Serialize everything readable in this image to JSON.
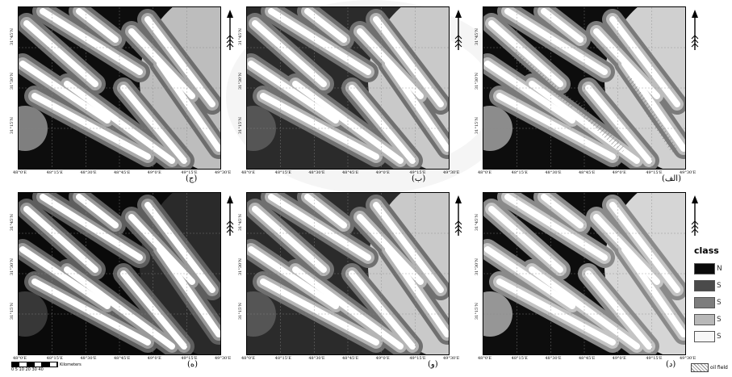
{
  "panels": [
    {
      "id": "alef",
      "label": "(الف)",
      "style": "oil"
    },
    {
      "id": "be",
      "label": "(ب)",
      "style": "mid"
    },
    {
      "id": "jim",
      "label": "(ج)",
      "style": "gray"
    },
    {
      "id": "dal",
      "label": "(د)",
      "style": "light"
    },
    {
      "id": "vav",
      "label": "(و)",
      "style": "mid"
    },
    {
      "id": "he",
      "label": "(ه)",
      "style": "dark"
    }
  ],
  "axis": {
    "lon_ticks": [
      "48°0'E",
      "48°15'E",
      "48°30'E",
      "48°45'E",
      "49°0'E",
      "49°15'E",
      "49°30'E"
    ],
    "lat_ticks": [
      "31°45'N",
      "31°30'N",
      "31°15'N"
    ]
  },
  "legend": {
    "title": "class",
    "items": [
      {
        "label": "N",
        "color": "#0a0a0a"
      },
      {
        "label": "S",
        "color": "#4a4a4a"
      },
      {
        "label": "S",
        "color": "#7d7d7d"
      },
      {
        "label": "S",
        "color": "#b8b8b8"
      },
      {
        "label": "S",
        "color": "#f7f7f7"
      }
    ]
  },
  "oil_field_label": "oil field",
  "scalebar": {
    "unit": "Kilometers",
    "ticks": "0 5 10   20   30   40"
  },
  "palettes": {
    "dark": {
      "bg": "#0a0a0a",
      "rightzone": "#2a2a2a",
      "ring": "#5e5e5e",
      "mid": "#9a9a9a",
      "core": "#ffffff",
      "circle": "#3c3c3c"
    },
    "gray": {
      "bg": "#0d0d0d",
      "rightzone": "#bdbdbd",
      "ring": "#6d6d6d",
      "mid": "#aaaaaa",
      "core": "#ffffff",
      "circle": "#8c8c8c"
    },
    "mid": {
      "bg": "#2b2b2b",
      "rightzone": "#c9c9c9",
      "ring": "#707070",
      "mid": "#b5b5b5",
      "core": "#ffffff",
      "circle": "#5a5a5a"
    },
    "oil": {
      "bg": "#0d0d0d",
      "rightzone": "#d0d0d0",
      "ring": "#7a7a7a",
      "mid": "#bdbdbd",
      "core": "#ffffff",
      "circle": "#9a9a9a"
    },
    "light": {
      "bg": "#0d0d0d",
      "rightzone": "#d6d6d6",
      "ring": "#8a8a8a",
      "mid": "#c4c4c4",
      "core": "#ffffff",
      "circle": "#a5a5a5"
    }
  }
}
